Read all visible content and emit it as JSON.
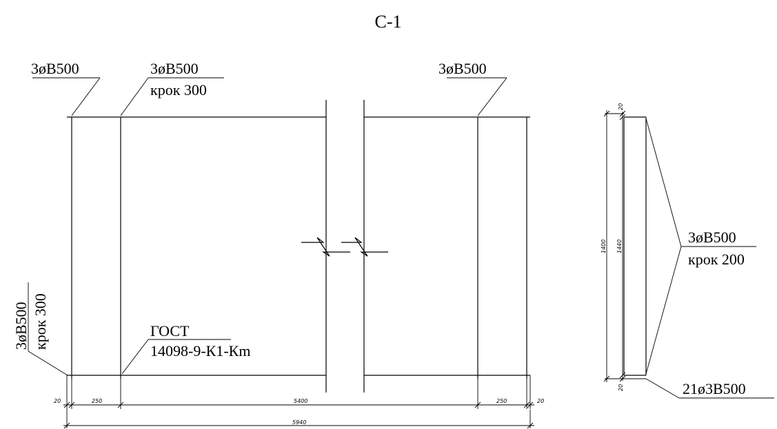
{
  "title": "С-1",
  "labels": {
    "top_left": "3øB500",
    "top_middle": "3øB500",
    "top_middle_sub": "крок 300",
    "top_right": "3øB500",
    "left_vertical": "3øB500",
    "left_vertical_sub": "крок 300",
    "gost_line1": "ГОСТ",
    "gost_line2": "14098-9-К1-Кm",
    "section_line1": "3øB500",
    "section_line2": "крок 200",
    "section_bottom": "21ø3B500"
  },
  "dimensions": {
    "d20_left": "20",
    "d250_left": "250",
    "d5400": "5400",
    "d250_right": "250",
    "d20_right": "20",
    "d5940": "5940",
    "section_top": "20",
    "section_total": "1400",
    "section_inner": "1440",
    "section_bottom": "20"
  }
}
